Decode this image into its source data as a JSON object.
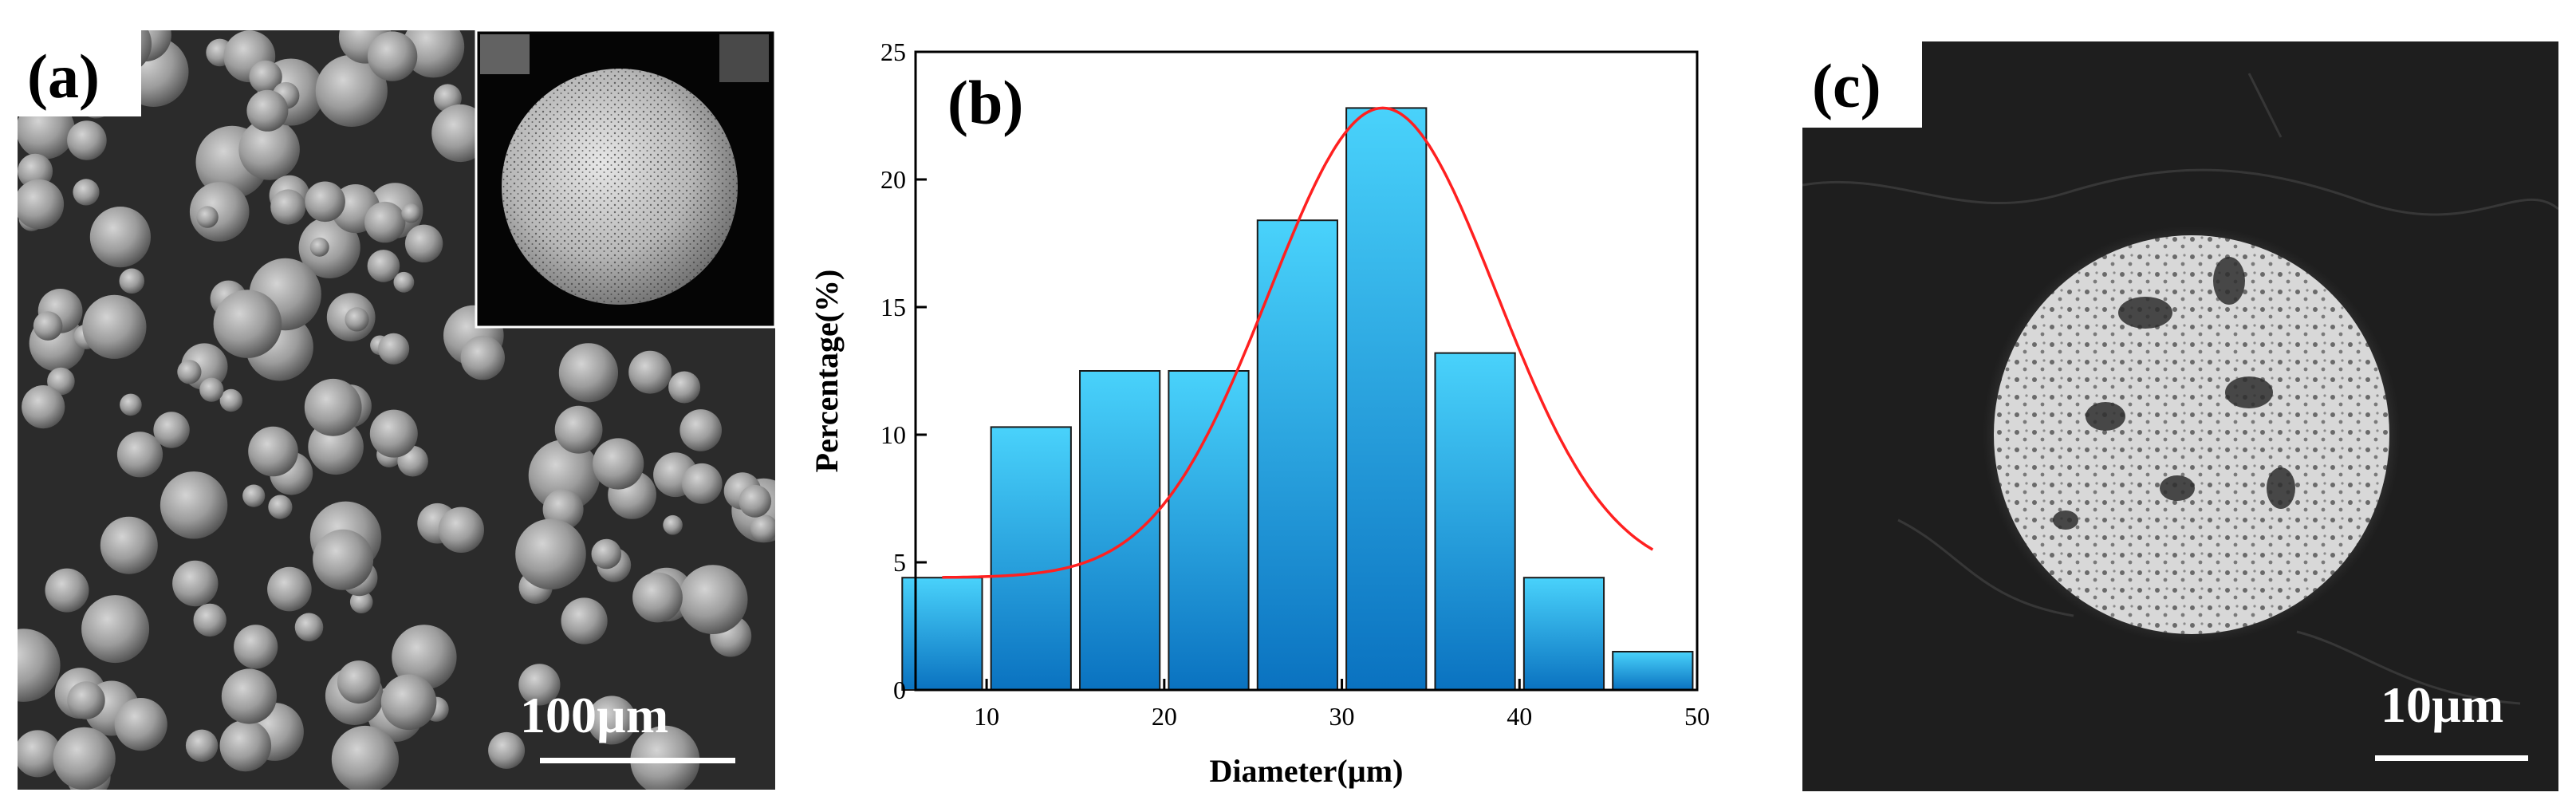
{
  "panel_a": {
    "label": "(a)",
    "scale_bar": "100µm"
  },
  "panel_c": {
    "label": "(c)",
    "scale_bar": "10µm"
  },
  "chart_data": {
    "type": "bar",
    "label": "(b)",
    "xlabel": "Diameter(µm)",
    "ylabel": "Percentage(%)",
    "xlim": [
      6,
      50
    ],
    "ylim": [
      0,
      25
    ],
    "xticks": [
      10,
      20,
      30,
      40,
      50
    ],
    "yticks": [
      0,
      5,
      10,
      15,
      20,
      25
    ],
    "bar_width": 4.5,
    "x": [
      7.5,
      12.5,
      17.5,
      22.5,
      27.5,
      32.5,
      37.5,
      42.5,
      47.5
    ],
    "values": [
      4.4,
      10.3,
      12.5,
      12.5,
      18.4,
      22.8,
      13.2,
      4.4,
      1.5
    ],
    "fit_curve": {
      "type": "gaussian",
      "y0": 4.4,
      "amplitude": 18.4,
      "center": 32.3,
      "sigma": 6.4,
      "x_range": [
        7.5,
        47.5
      ],
      "color": "#ff2020"
    },
    "bar_gradient": [
      "#49d2fb",
      "#0a72c0"
    ],
    "bar_edge": "#1a1a1a"
  }
}
